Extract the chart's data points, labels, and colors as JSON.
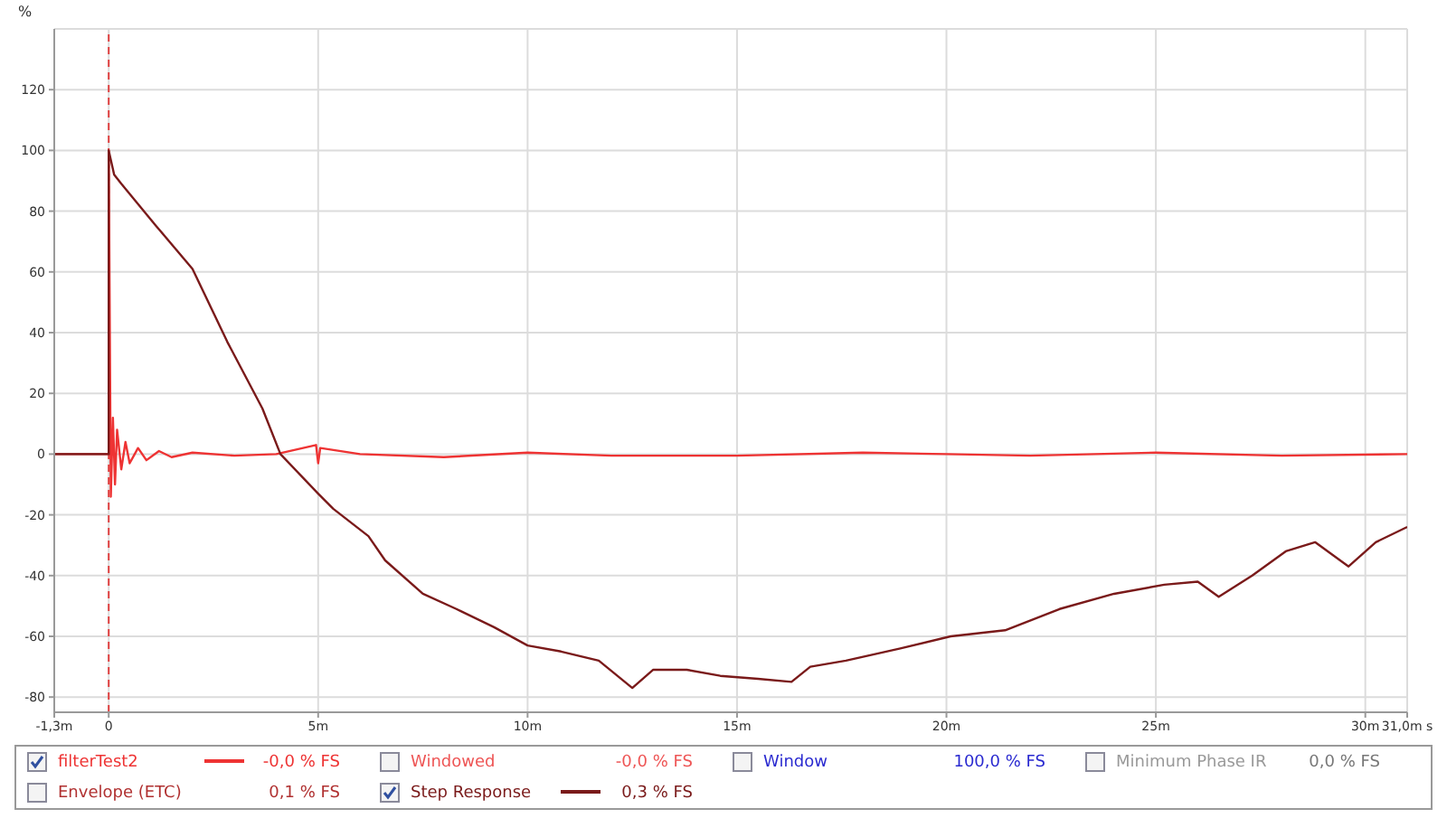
{
  "chart_data": {
    "type": "line",
    "ylabel": "%",
    "xlim": [
      -1.3,
      31
    ],
    "ylim": [
      -85,
      140
    ],
    "xticks": [
      {
        "value": -1.3,
        "label": "-1,3m"
      },
      0,
      {
        "value": 5,
        "label": "5m"
      },
      {
        "value": 10,
        "label": "10m"
      },
      {
        "value": 15,
        "label": "15m"
      },
      {
        "value": 20,
        "label": "20m"
      },
      {
        "value": 25,
        "label": "25m"
      },
      {
        "value": 30,
        "label": "30m"
      },
      {
        "value": 31,
        "label": "31,0m s"
      }
    ],
    "yticks": [
      -80,
      -60,
      -40,
      -20,
      0,
      20,
      40,
      60,
      80,
      100,
      120
    ],
    "grid": true,
    "legend": "bottom",
    "ref_lines": [
      {
        "axis": "x",
        "value": 0,
        "color": "#e04040",
        "line_style": "dashed"
      }
    ],
    "series": [
      {
        "name": "filterTest2",
        "color": "#ee3333",
        "x": [
          -1.3,
          0,
          0,
          0.05,
          0.1,
          0.15,
          0.2,
          0.3,
          0.4,
          0.5,
          0.7,
          0.9,
          1.2,
          1.5,
          2,
          3,
          4,
          4.95,
          5,
          5.05,
          6,
          8,
          10,
          12,
          15,
          18,
          20,
          22,
          25,
          28,
          31
        ],
        "values": [
          0,
          0,
          100,
          -14,
          12,
          -10,
          8,
          -5,
          4,
          -3,
          2,
          -2,
          1,
          -1,
          0.5,
          -0.5,
          0,
          3,
          -3,
          2,
          0,
          -1,
          0.5,
          -0.5,
          -0.5,
          0.5,
          0,
          -0.5,
          0.5,
          -0.5,
          0
        ]
      },
      {
        "name": "Step Response",
        "color": "#7a1a1a",
        "x": [
          -1.3,
          0,
          0,
          0.13,
          0.3,
          1.14,
          2,
          2.83,
          3.67,
          4.1,
          5,
          5.36,
          6.2,
          6.6,
          7.5,
          8.3,
          9.2,
          10,
          10.8,
          11.7,
          12.5,
          13,
          13.8,
          14.6,
          15.5,
          16.3,
          16.75,
          17.6,
          18.9,
          20.1,
          21.4,
          22.7,
          24,
          25.2,
          26,
          26.5,
          27.3,
          28.1,
          28.8,
          29.6,
          30.25,
          31
        ],
        "values": [
          0,
          0,
          100,
          92,
          89,
          75,
          61,
          37,
          15,
          0,
          -13,
          -18,
          -27,
          -35,
          -46,
          -51,
          -57,
          -63,
          -65,
          -68,
          -77,
          -71,
          -71,
          -73,
          -74,
          -75,
          -70,
          -68,
          -64,
          -60,
          -58,
          -51,
          -46,
          -43,
          -42,
          -47,
          -40,
          -32,
          -29,
          -37,
          -29,
          -24
        ]
      }
    ],
    "annotations": [
      "-0,0 % FS",
      "Windowed",
      "-0,0 % FS",
      "Window",
      "100,0 % FS",
      "Minimum Phase IR",
      "0,0 % FS",
      "Envelope (ETC)",
      "0,1 % FS",
      "0,3 % FS"
    ]
  }
}
